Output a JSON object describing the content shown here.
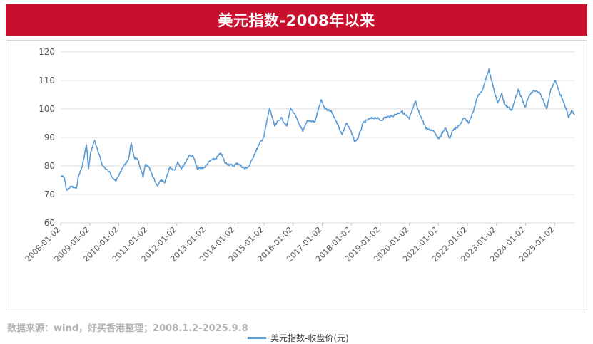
{
  "title": "美元指数-2008年以来",
  "source": "数据来源：wind，好买香港整理；2008.1.2-2025.9.8",
  "chart_data": {
    "type": "line",
    "title": "美元指数-2008年以来",
    "xlabel": "",
    "ylabel": "",
    "ylim": [
      60,
      120
    ],
    "yticks": [
      60,
      70,
      80,
      90,
      100,
      110,
      120
    ],
    "x_tick_labels": [
      "2008-01-02",
      "2009-01-02",
      "2010-01-02",
      "2011-01-02",
      "2012-01-02",
      "2013-01-02",
      "2014-01-02",
      "2015-01-02",
      "2016-01-02",
      "2017-01-02",
      "2018-01-02",
      "2019-01-02",
      "2020-01-02",
      "2021-01-02",
      "2022-01-02",
      "2023-01-02",
      "2024-01-02",
      "2025-01-02"
    ],
    "grid": "horizontal",
    "legend_position": "bottom",
    "line_color": "#5b9bd5",
    "series": [
      {
        "name": "美元指数-收盘价(元)",
        "points": [
          [
            "2008-01-02",
            76.5
          ],
          [
            "2008-02-15",
            76.0
          ],
          [
            "2008-03-17",
            71.5
          ],
          [
            "2008-05-15",
            72.8
          ],
          [
            "2008-07-15",
            72.0
          ],
          [
            "2008-08-15",
            76.5
          ],
          [
            "2008-10-01",
            80.0
          ],
          [
            "2008-11-21",
            87.5
          ],
          [
            "2008-12-18",
            79.0
          ],
          [
            "2009-01-15",
            85.0
          ],
          [
            "2009-03-04",
            89.0
          ],
          [
            "2009-04-15",
            85.0
          ],
          [
            "2009-06-15",
            80.0
          ],
          [
            "2009-09-01",
            78.0
          ],
          [
            "2009-11-25",
            74.5
          ],
          [
            "2010-01-15",
            77.5
          ],
          [
            "2010-03-15",
            80.5
          ],
          [
            "2010-05-01",
            82.0
          ],
          [
            "2010-06-07",
            88.0
          ],
          [
            "2010-07-15",
            83.0
          ],
          [
            "2010-09-01",
            82.0
          ],
          [
            "2010-11-04",
            76.0
          ],
          [
            "2010-12-01",
            80.5
          ],
          [
            "2011-01-15",
            79.5
          ],
          [
            "2011-03-01",
            76.5
          ],
          [
            "2011-05-01",
            73.0
          ],
          [
            "2011-06-15",
            75.0
          ],
          [
            "2011-08-01",
            74.0
          ],
          [
            "2011-10-04",
            79.5
          ],
          [
            "2011-12-01",
            78.5
          ],
          [
            "2012-01-13",
            81.5
          ],
          [
            "2012-03-01",
            79.0
          ],
          [
            "2012-06-01",
            83.5
          ],
          [
            "2012-07-24",
            83.5
          ],
          [
            "2012-09-14",
            79.0
          ],
          [
            "2012-12-15",
            79.5
          ],
          [
            "2013-03-01",
            82.0
          ],
          [
            "2013-05-01",
            82.5
          ],
          [
            "2013-07-09",
            84.5
          ],
          [
            "2013-09-01",
            81.0
          ],
          [
            "2013-12-15",
            80.0
          ],
          [
            "2014-02-01",
            81.0
          ],
          [
            "2014-05-06",
            79.0
          ],
          [
            "2014-07-01",
            80.0
          ],
          [
            "2014-09-01",
            84.0
          ],
          [
            "2014-11-01",
            87.5
          ],
          [
            "2014-12-31",
            90.3
          ],
          [
            "2015-02-01",
            95.0
          ],
          [
            "2015-03-13",
            100.3
          ],
          [
            "2015-05-15",
            94.0
          ],
          [
            "2015-08-01",
            97.0
          ],
          [
            "2015-10-15",
            94.0
          ],
          [
            "2015-12-02",
            100.3
          ],
          [
            "2016-01-15",
            98.5
          ],
          [
            "2016-05-03",
            92.0
          ],
          [
            "2016-07-01",
            96.0
          ],
          [
            "2016-10-01",
            95.5
          ],
          [
            "2016-12-20",
            103.3
          ],
          [
            "2017-02-01",
            100.0
          ],
          [
            "2017-05-01",
            99.0
          ],
          [
            "2017-07-01",
            95.5
          ],
          [
            "2017-09-08",
            91.0
          ],
          [
            "2017-11-01",
            95.0
          ],
          [
            "2018-01-01",
            92.0
          ],
          [
            "2018-02-16",
            88.5
          ],
          [
            "2018-04-01",
            90.0
          ],
          [
            "2018-05-29",
            95.0
          ],
          [
            "2018-08-15",
            96.5
          ],
          [
            "2018-11-01",
            97.0
          ],
          [
            "2019-01-15",
            96.0
          ],
          [
            "2019-03-01",
            97.0
          ],
          [
            "2019-06-01",
            97.5
          ],
          [
            "2019-09-30",
            99.2
          ],
          [
            "2019-12-31",
            96.5
          ],
          [
            "2020-03-20",
            102.8
          ],
          [
            "2020-04-15",
            100.0
          ],
          [
            "2020-06-01",
            97.0
          ],
          [
            "2020-08-01",
            93.0
          ],
          [
            "2020-11-01",
            92.5
          ],
          [
            "2021-01-06",
            89.5
          ],
          [
            "2021-03-31",
            93.3
          ],
          [
            "2021-05-25",
            89.7
          ],
          [
            "2021-07-01",
            92.5
          ],
          [
            "2021-09-01",
            93.5
          ],
          [
            "2021-11-24",
            96.8
          ],
          [
            "2022-01-15",
            95.0
          ],
          [
            "2022-03-15",
            99.0
          ],
          [
            "2022-05-13",
            104.8
          ],
          [
            "2022-07-01",
            106.0
          ],
          [
            "2022-09-28",
            114.0
          ],
          [
            "2022-11-01",
            110.0
          ],
          [
            "2023-01-15",
            102.0
          ],
          [
            "2023-03-08",
            105.5
          ],
          [
            "2023-04-15",
            101.5
          ],
          [
            "2023-07-14",
            99.6
          ],
          [
            "2023-10-03",
            107.0
          ],
          [
            "2023-12-27",
            100.6
          ],
          [
            "2024-02-15",
            104.5
          ],
          [
            "2024-04-16",
            106.5
          ],
          [
            "2024-07-01",
            105.5
          ],
          [
            "2024-09-27",
            100.2
          ],
          [
            "2024-11-15",
            107.0
          ],
          [
            "2025-01-13",
            110.0
          ],
          [
            "2025-02-15",
            107.0
          ],
          [
            "2025-04-01",
            104.0
          ],
          [
            "2025-06-01",
            99.5
          ],
          [
            "2025-06-30",
            96.9
          ],
          [
            "2025-08-01",
            99.5
          ],
          [
            "2025-09-08",
            97.8
          ]
        ]
      }
    ]
  }
}
